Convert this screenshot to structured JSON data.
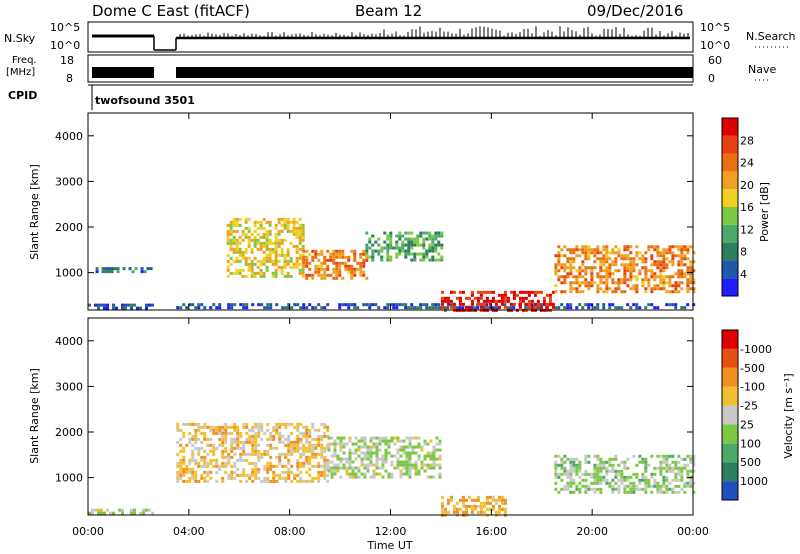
{
  "header": {
    "title": "Dome C East (fitACF)",
    "beam": "Beam 12",
    "date": "09/Dec/2016"
  },
  "strips": {
    "nsky_label": "N.Sky",
    "nsearch_label": "N.Search",
    "nsky_ticks": [
      "10^5",
      "10^0"
    ],
    "nsearch_ticks": [
      "10^5",
      "10^0"
    ],
    "freq_label_1": "Freq.",
    "freq_label_2": "[MHz]",
    "freq_ticks": [
      "18",
      "8"
    ],
    "nave_label": "Nave",
    "nave_ticks": [
      "60",
      "0"
    ],
    "cpid_label": "CPID",
    "cpid_value": "twofsound 3501"
  },
  "axes": {
    "ylabel": "Slant Range [km]",
    "xlabel": "Time UT",
    "x_ticks": [
      "00:00",
      "04:00",
      "08:00",
      "12:00",
      "16:00",
      "20:00",
      "00:00"
    ],
    "y_ticks": [
      "1000",
      "2000",
      "3000",
      "4000"
    ]
  },
  "colorbars": {
    "power": {
      "label": "Power [dB]",
      "ticks": [
        "4",
        "8",
        "12",
        "16",
        "20",
        "24",
        "28"
      ],
      "colors": [
        "#1e1eff",
        "#1e5aa8",
        "#2e7d5e",
        "#4ea86a",
        "#7cc842",
        "#f0d020",
        "#f0a020",
        "#e87010",
        "#e84010",
        "#e00000"
      ]
    },
    "velocity": {
      "label": "Velocity [m s⁻¹]",
      "ticks": [
        "1000",
        "500",
        "100",
        "25",
        "-25",
        "-100",
        "-500",
        "-1000"
      ],
      "colors": [
        "#2050c0",
        "#2e7d5e",
        "#4ea86a",
        "#7cc842",
        "#c8c8c8",
        "#f0c030",
        "#f09020",
        "#e85010",
        "#e00000"
      ]
    }
  },
  "chart_data": [
    {
      "type": "heatmap",
      "name": "Power",
      "x_range": [
        "00:00",
        "24:00"
      ],
      "ylim": [
        180,
        4500
      ],
      "regions": [
        {
          "t": [
            0.0,
            2.5
          ],
          "r": [
            200,
            320
          ],
          "value_db": 6
        },
        {
          "t": [
            0.3,
            2.5
          ],
          "r": [
            1000,
            1120
          ],
          "value_db": 8
        },
        {
          "t": [
            3.5,
            24.0
          ],
          "r": [
            200,
            330
          ],
          "value_db": 6
        },
        {
          "t": [
            5.5,
            8.5
          ],
          "r": [
            900,
            2200
          ],
          "value_db": 18
        },
        {
          "t": [
            8.5,
            11.0
          ],
          "r": [
            900,
            1500
          ],
          "value_db": 22
        },
        {
          "t": [
            11.0,
            14.0
          ],
          "r": [
            1300,
            1900
          ],
          "value_db": 12
        },
        {
          "t": [
            14.0,
            18.5
          ],
          "r": [
            200,
            600
          ],
          "value_db": 28
        },
        {
          "t": [
            18.5,
            24.0
          ],
          "r": [
            600,
            1600
          ],
          "value_db": 22
        }
      ]
    },
    {
      "type": "heatmap",
      "name": "Velocity",
      "x_range": [
        "00:00",
        "24:00"
      ],
      "ylim": [
        180,
        4500
      ],
      "regions": [
        {
          "t": [
            0.0,
            2.5
          ],
          "r": [
            200,
            320
          ],
          "value_ms": 50
        },
        {
          "t": [
            3.5,
            9.5
          ],
          "r": [
            900,
            2200
          ],
          "value_ms": -200
        },
        {
          "t": [
            9.5,
            14.0
          ],
          "r": [
            1000,
            1900
          ],
          "value_ms": 80
        },
        {
          "t": [
            14.0,
            16.5
          ],
          "r": [
            200,
            600
          ],
          "value_ms": -300
        },
        {
          "t": [
            18.5,
            24.0
          ],
          "r": [
            700,
            1500
          ],
          "value_ms": 150
        }
      ]
    }
  ]
}
